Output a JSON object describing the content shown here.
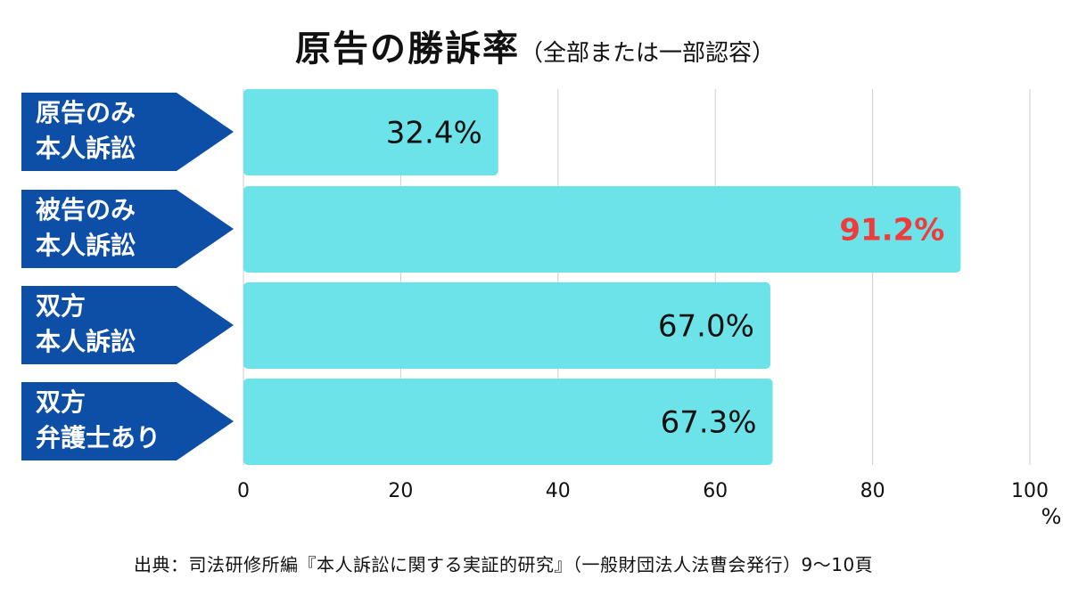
{
  "title": {
    "main": "原告の勝訴率",
    "sub": "（全部または一部認容）"
  },
  "source": "出典：司法研修所編『本人訴訟に関する実証的研究』（一般財団法人法曹会発行）9〜10頁",
  "colors": {
    "bar": "#6be3e8",
    "label_bg": "#0d4ea6",
    "grid": "#cccccc",
    "highlight": "#ef3b3b"
  },
  "chart_data": {
    "type": "bar",
    "orientation": "horizontal",
    "categories": [
      [
        "原告のみ",
        "本人訴訟"
      ],
      [
        "被告のみ",
        "本人訴訟"
      ],
      [
        "双方",
        "本人訴訟"
      ],
      [
        "双方",
        "弁護士あり"
      ]
    ],
    "values": [
      32.4,
      91.2,
      67.0,
      67.3
    ],
    "value_labels": [
      "32.4%",
      "91.2%",
      "67.0%",
      "67.3%"
    ],
    "highlight_index": 1,
    "xlim": [
      0,
      100
    ],
    "xticks": [
      0,
      20,
      40,
      60,
      80,
      100
    ],
    "xunit": "%",
    "grid": true
  }
}
